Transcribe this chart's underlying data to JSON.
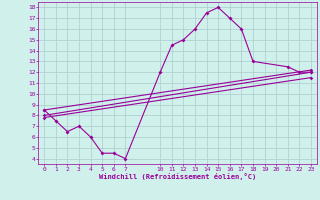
{
  "bg_color": "#d0f0ec",
  "line_color": "#990099",
  "grid_color": "#aacccc",
  "xlabel": "Windchill (Refroidissement éolien,°C)",
  "ylim": [
    3.5,
    18.5
  ],
  "xlim": [
    -0.5,
    23.5
  ],
  "yticks": [
    4,
    5,
    6,
    7,
    8,
    9,
    10,
    11,
    12,
    13,
    14,
    15,
    16,
    17,
    18
  ],
  "xticks": [
    0,
    1,
    2,
    3,
    4,
    5,
    6,
    7,
    10,
    11,
    12,
    13,
    14,
    15,
    16,
    17,
    18,
    19,
    20,
    21,
    22,
    23
  ],
  "series1_x": [
    0,
    1,
    2,
    3,
    4,
    5,
    6,
    7,
    10,
    11,
    12,
    13,
    14,
    15,
    16,
    17,
    18,
    21,
    22,
    23
  ],
  "series1_y": [
    8.5,
    7.5,
    6.5,
    7.0,
    6.0,
    4.5,
    4.5,
    4.0,
    12.0,
    14.5,
    15.0,
    16.0,
    17.5,
    18.0,
    17.0,
    16.0,
    13.0,
    12.5,
    12.0,
    12.0
  ],
  "series2_x": [
    0,
    23
  ],
  "series2_y": [
    8.5,
    12.2
  ],
  "series3_x": [
    0,
    23
  ],
  "series3_y": [
    8.0,
    12.0
  ],
  "series4_x": [
    0,
    23
  ],
  "series4_y": [
    7.8,
    11.5
  ]
}
